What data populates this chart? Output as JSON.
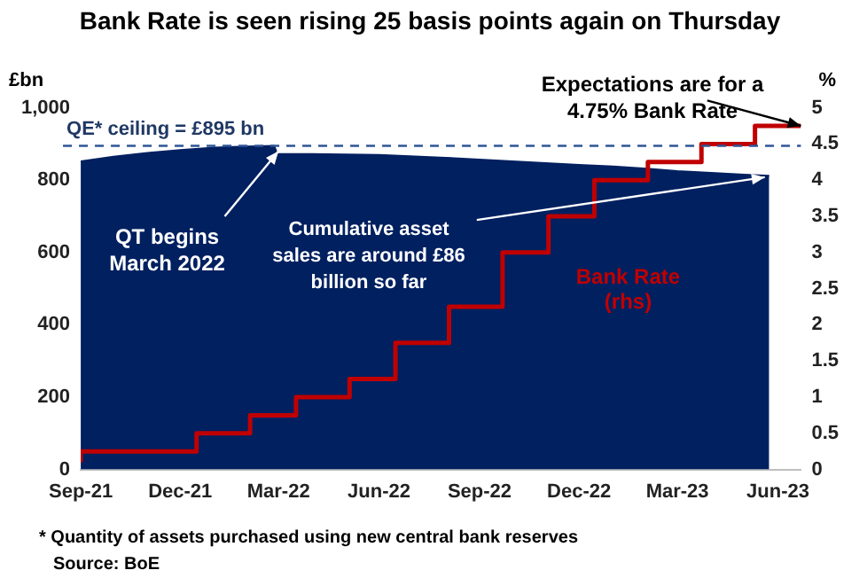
{
  "chart_data": {
    "type": "area",
    "title": "Bank Rate is seen rising 25 basis points again on Thursday",
    "ylabel": "£bn",
    "y2label": "%",
    "xlim": [
      "2021-09-01",
      "2023-06-22"
    ],
    "xticks": [
      {
        "value": "2021-09-01",
        "label": "Sep-21"
      },
      {
        "value": "2021-12-01",
        "label": "Dec-21"
      },
      {
        "value": "2022-03-01",
        "label": "Mar-22"
      },
      {
        "value": "2022-06-01",
        "label": "Jun-22"
      },
      {
        "value": "2022-09-01",
        "label": "Sep-22"
      },
      {
        "value": "2022-12-01",
        "label": "Dec-22"
      },
      {
        "value": "2023-03-01",
        "label": "Mar-23"
      },
      {
        "value": "2023-06-01",
        "label": "Jun-23"
      }
    ],
    "ylim": [
      0,
      1000
    ],
    "yticks": [
      0,
      200,
      400,
      600,
      800,
      {
        "value": 1000,
        "label": "1,000"
      }
    ],
    "y2lim": [
      0,
      5
    ],
    "y2ticks": [
      0,
      0.5,
      1,
      1.5,
      2,
      2.5,
      3,
      3.5,
      4,
      4.5,
      5
    ],
    "grid": false,
    "legend": false,
    "series": [
      {
        "color": "#002060",
        "x": [
          "2021-09-01",
          "2021-10-01",
          "2021-11-01",
          "2021-12-01",
          "2022-01-01",
          "2022-02-01",
          "2022-02-25",
          "2022-02-28",
          "2022-04-01",
          "2022-06-01",
          "2022-08-01",
          "2022-10-01",
          "2022-12-01",
          "2023-01-01",
          "2023-02-01",
          "2023-03-01",
          "2023-04-01",
          "2023-05-01",
          "2023-05-24"
        ],
        "values": [
          852,
          865,
          875,
          883,
          890,
          893,
          895,
          872,
          872,
          870,
          862,
          852,
          842,
          838,
          832,
          825,
          820,
          815,
          812
        ]
      },
      {
        "type": "step",
        "name": "Bank Rate (rhs)",
        "axis": "y2",
        "color": "#c00000",
        "x": [
          "2021-09-01",
          "2021-12-16",
          "2022-02-03",
          "2022-03-17",
          "2022-05-05",
          "2022-06-16",
          "2022-08-04",
          "2022-09-22",
          "2022-11-03",
          "2022-12-15",
          "2023-02-02",
          "2023-03-23",
          "2023-05-11",
          "2023-06-22"
        ],
        "values": [
          0.1,
          0.25,
          0.5,
          0.75,
          1,
          1.25,
          1.75,
          2.25,
          3,
          3.5,
          4,
          4.25,
          4.5,
          4.75
        ]
      }
    ],
    "ref_lines": [
      {
        "axis": "y",
        "value": 895,
        "label": "QE* ceiling = £895 bn",
        "color": "#2f5597",
        "line_style": "dashed"
      }
    ],
    "annotations": [
      {
        "text": "QT begins March 2022",
        "x": "2022-03-01",
        "y": 880
      },
      {
        "text": "Cumulative asset sales are around £86 billion so far",
        "x": "2023-05-20",
        "y": 808
      },
      {
        "text": "Expectations are for a 4.75% Bank Rate",
        "x": "2023-06-22",
        "y": 950
      },
      "* Quantity of assets purchased using new central bank reserves",
      "Source: BoE"
    ]
  }
}
